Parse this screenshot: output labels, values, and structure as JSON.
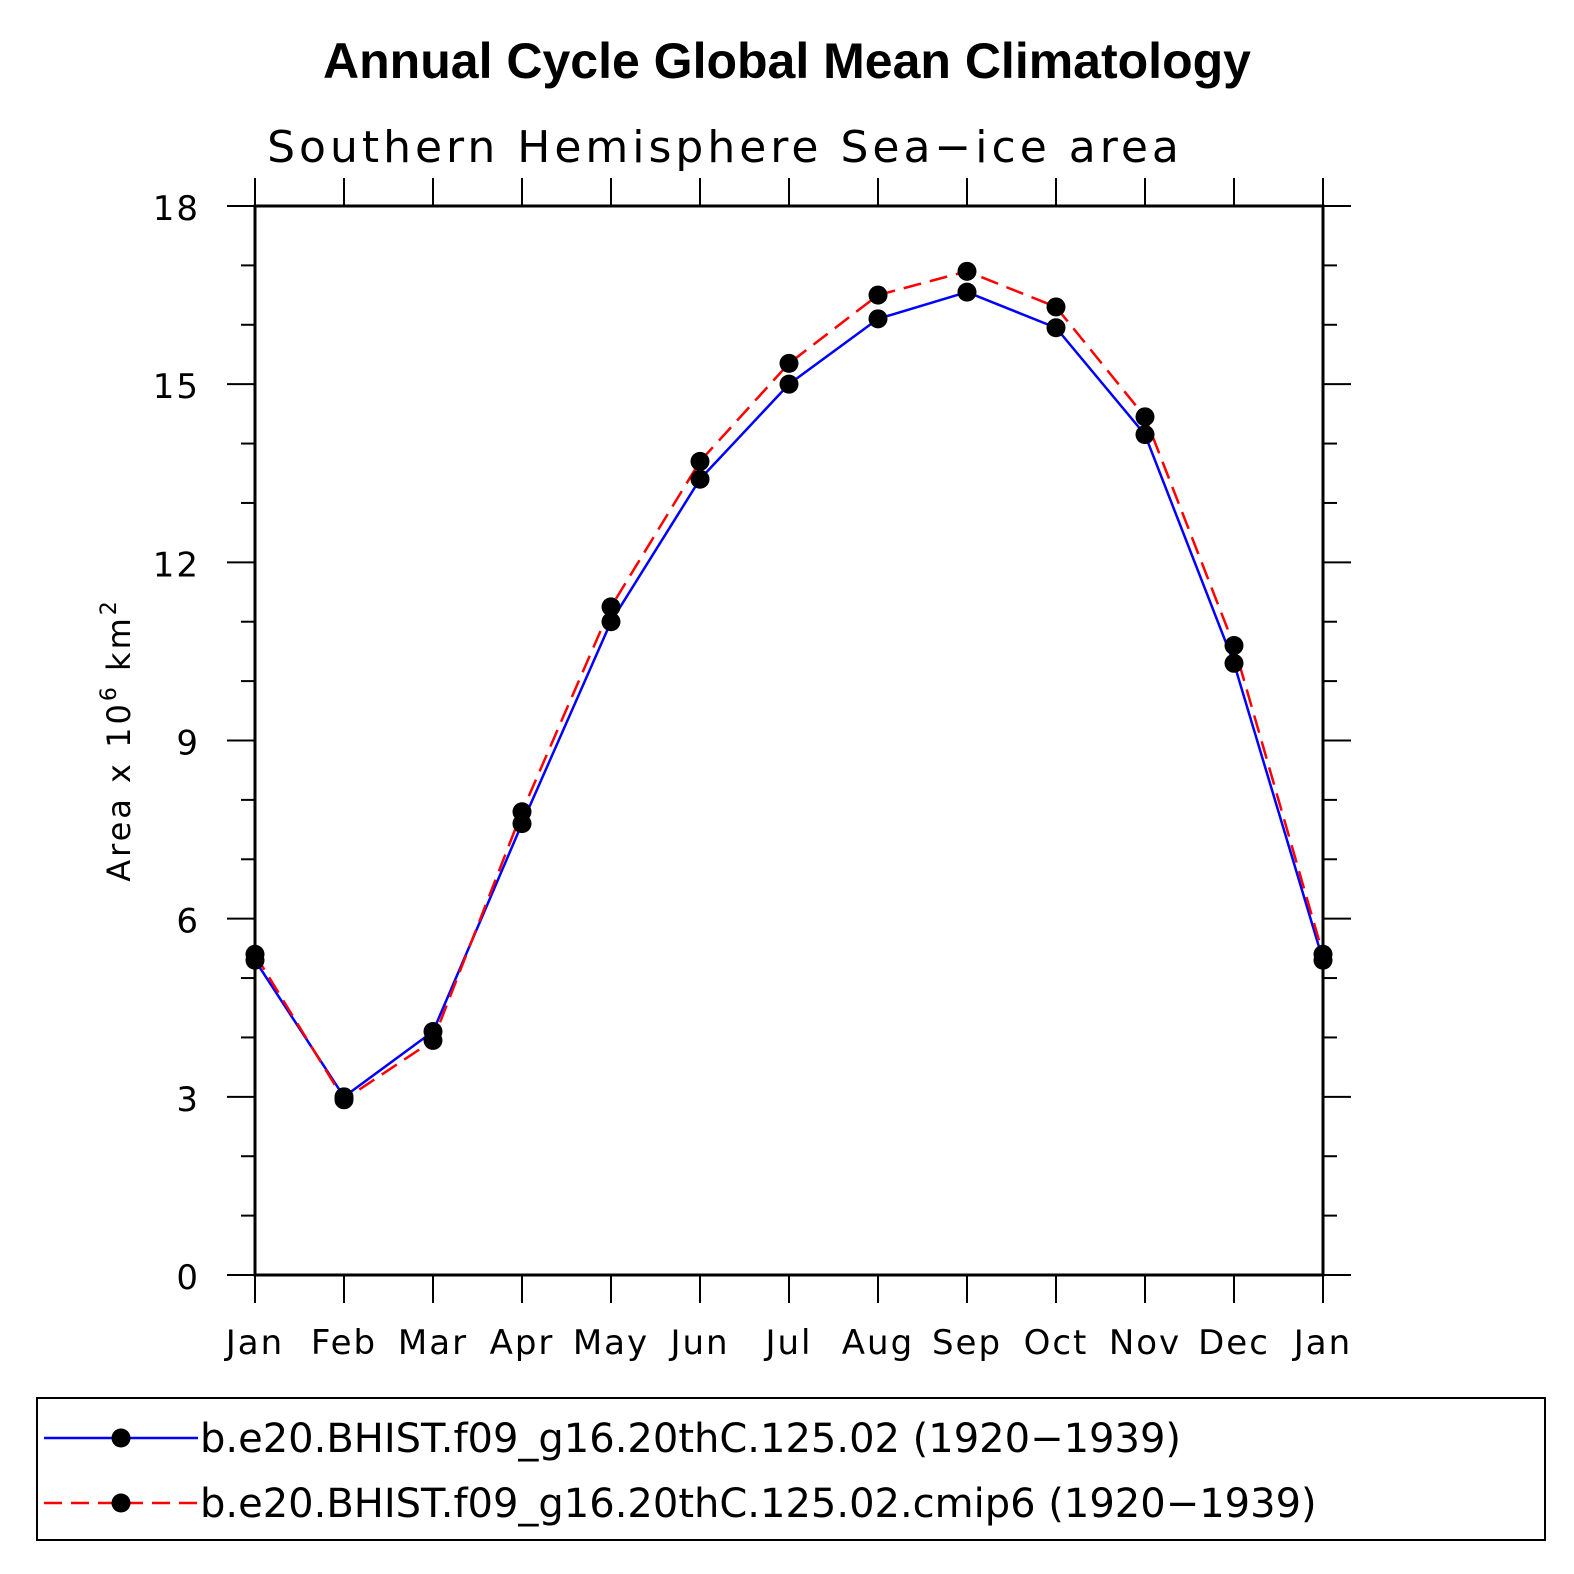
{
  "chart_data": {
    "type": "line",
    "title": "Annual Cycle Global Mean Climatology",
    "subtitle": "Southern Hemisphere Sea−ice area",
    "ylabel_parts": [
      "Area x 10",
      "6",
      " km",
      "2"
    ],
    "xlabel": "",
    "categories": [
      "Jan",
      "Feb",
      "Mar",
      "Apr",
      "May",
      "Jun",
      "Jul",
      "Aug",
      "Sep",
      "Oct",
      "Nov",
      "Dec",
      "Jan"
    ],
    "ylim": [
      0,
      18
    ],
    "yticks": [
      0,
      3,
      6,
      9,
      12,
      15,
      18
    ],
    "y_minor_step": 1,
    "grid": false,
    "legend_position": "bottom",
    "series": [
      {
        "name": "b.e20.BHIST.f09_g16.20thC.125.02 (1920−1939)",
        "color": "#0000ff",
        "dash": "solid",
        "values": [
          5.3,
          3.0,
          4.1,
          7.6,
          11.0,
          13.4,
          15.0,
          16.1,
          16.55,
          15.95,
          14.15,
          10.3,
          5.3
        ]
      },
      {
        "name": "b.e20.BHIST.f09_g16.20thC.125.02.cmip6 (1920−1939)",
        "color": "#ff0000",
        "dash": "dashed",
        "values": [
          5.4,
          2.95,
          3.95,
          7.8,
          11.25,
          13.7,
          15.35,
          16.5,
          16.9,
          16.3,
          14.45,
          10.6,
          5.4
        ]
      }
    ]
  }
}
